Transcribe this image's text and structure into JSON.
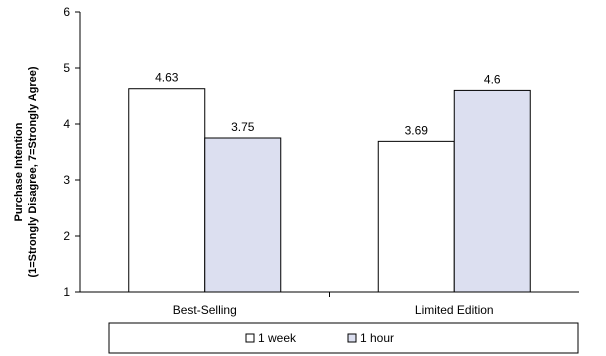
{
  "chart_data": {
    "type": "bar",
    "title": "",
    "xlabel": "",
    "ylabel_lines": [
      "Purchase Intention",
      "(1=Strongly Disagree, 7=Strongly Agree)"
    ],
    "ylim": [
      1,
      6
    ],
    "yticks": [
      1,
      2,
      3,
      4,
      5,
      6
    ],
    "categories": [
      "Best-Selling",
      "Limited Edition"
    ],
    "series": [
      {
        "name": "1 week",
        "values": [
          4.63,
          3.69
        ],
        "value_labels": [
          "4.63",
          "3.69"
        ],
        "color": "#ffffff"
      },
      {
        "name": "1 hour",
        "values": [
          3.75,
          4.6
        ],
        "value_labels": [
          "3.75",
          "4.6"
        ],
        "color": "#dcdff0"
      }
    ],
    "legend_position": "bottom",
    "grid": false
  }
}
